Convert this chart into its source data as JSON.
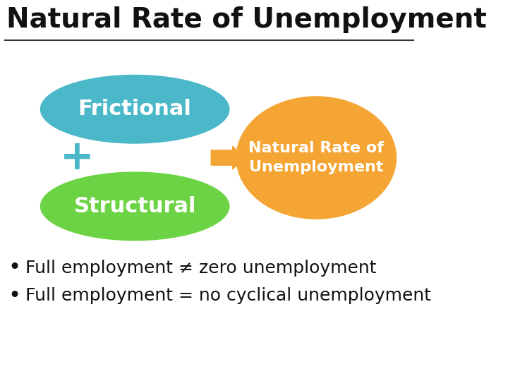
{
  "title": "Natural Rate of Unemployment",
  "title_fontsize": 28,
  "title_fontweight": "bold",
  "bg_color": "#ffffff",
  "line_color": "#333333",
  "frictional_color": "#4ab8c8",
  "structural_color": "#6cd444",
  "natural_rate_color": "#f5a533",
  "frictional_label": "Frictional",
  "structural_label": "Structural",
  "natural_rate_label": "Natural Rate of\nUnemployment",
  "arrow_color": "#f5a533",
  "plus_color": "#4ab8c8",
  "bullet1": "Full employment ≠ zero unemployment",
  "bullet2": "Full employment = no cyclical unemployment",
  "bullet_fontsize": 18,
  "label_fontsize": 22,
  "natural_label_fontsize": 16
}
